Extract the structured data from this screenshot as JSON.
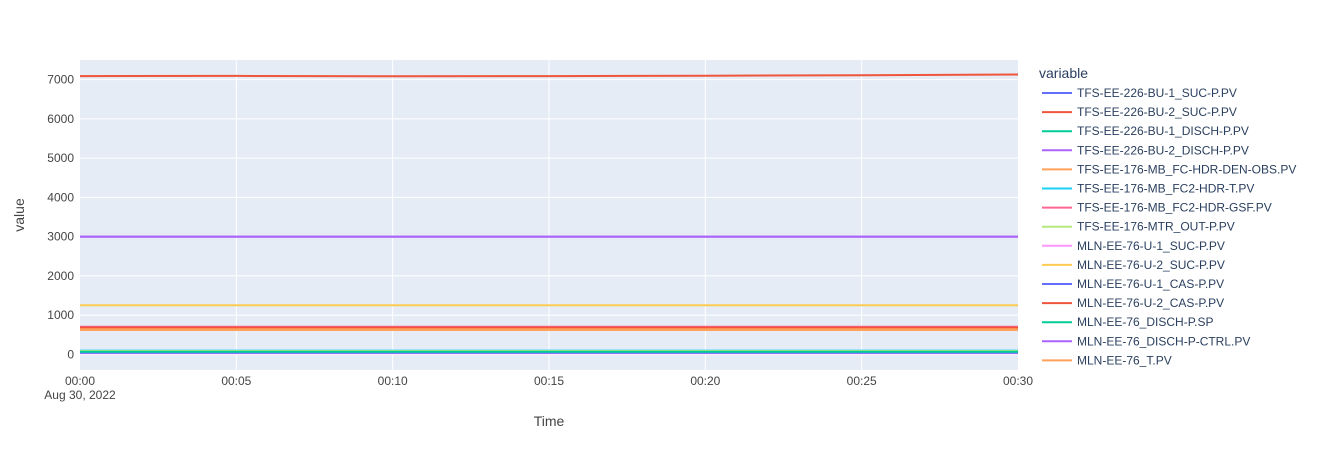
{
  "chart_data": {
    "type": "line",
    "title": "",
    "xlabel": "Time",
    "ylabel": "value",
    "x_start": "2022-08-30 00:00",
    "x_end": "2022-08-30 00:30",
    "x_ticks": [
      "00:00",
      "00:05",
      "00:10",
      "00:15",
      "00:20",
      "00:25",
      "00:30"
    ],
    "x_date_label": "Aug 30, 2022",
    "y_ticks": [
      0,
      1000,
      2000,
      3000,
      4000,
      5000,
      6000,
      7000
    ],
    "ylim": [
      -400,
      7500
    ],
    "grid": true,
    "legend": {
      "title": "variable",
      "placement": "right"
    },
    "series": [
      {
        "name": "TFS-EE-226-BU-1_SUC-P.PV",
        "color": "#636efa",
        "x": [
          "00:00",
          "00:30"
        ],
        "values": [
          35,
          35
        ]
      },
      {
        "name": "TFS-EE-226-BU-2_SUC-P.PV",
        "color": "#EF553B",
        "x": [
          "00:00",
          "00:05",
          "00:10",
          "00:15",
          "00:20",
          "00:25",
          "00:30"
        ],
        "values": [
          7090,
          7095,
          7085,
          7090,
          7100,
          7110,
          7130
        ]
      },
      {
        "name": "TFS-EE-226-BU-1_DISCH-P.PV",
        "color": "#00cc96",
        "x": [
          "00:00",
          "00:30"
        ],
        "values": [
          60,
          60
        ]
      },
      {
        "name": "TFS-EE-226-BU-2_DISCH-P.PV",
        "color": "#ab63fa",
        "x": [
          "00:00",
          "00:30"
        ],
        "values": [
          3000,
          3000
        ]
      },
      {
        "name": "TFS-EE-176-MB_FC-HDR-DEN-OBS.PV",
        "color": "#FFA15A",
        "x": [
          "00:00",
          "00:30"
        ],
        "values": [
          620,
          620
        ]
      },
      {
        "name": "TFS-EE-176-MB_FC2-HDR-T.PV",
        "color": "#19d3f3",
        "x": [
          "00:00",
          "00:30"
        ],
        "values": [
          95,
          95
        ]
      },
      {
        "name": "TFS-EE-176-MB_FC2-HDR-GSF.PV",
        "color": "#FF6692",
        "x": [
          "00:00",
          "00:30"
        ],
        "values": [
          700,
          700
        ]
      },
      {
        "name": "TFS-EE-176-MTR_OUT-P.PV",
        "color": "#B6E880",
        "x": [
          "00:00",
          "00:30"
        ],
        "values": [
          85,
          85
        ]
      },
      {
        "name": "MLN-EE-76-U-1_SUC-P.PV",
        "color": "#FF97FF",
        "x": [
          "00:00",
          "00:30"
        ],
        "values": [
          25,
          25
        ]
      },
      {
        "name": "MLN-EE-76-U-2_SUC-P.PV",
        "color": "#FECB52",
        "x": [
          "00:00",
          "00:30"
        ],
        "values": [
          1250,
          1250
        ]
      },
      {
        "name": "MLN-EE-76-U-1_CAS-P.PV",
        "color": "#636efa",
        "x": [
          "00:00",
          "00:30"
        ],
        "values": [
          40,
          40
        ]
      },
      {
        "name": "MLN-EE-76-U-2_CAS-P.PV",
        "color": "#EF553B",
        "x": [
          "00:00",
          "00:30"
        ],
        "values": [
          680,
          680
        ]
      },
      {
        "name": "MLN-EE-76_DISCH-P.SP",
        "color": "#00cc96",
        "x": [
          "00:00",
          "00:30"
        ],
        "values": [
          65,
          65
        ]
      },
      {
        "name": "MLN-EE-76_DISCH-P-CTRL.PV",
        "color": "#ab63fa",
        "x": [
          "00:00",
          "00:30"
        ],
        "values": [
          2995,
          2995
        ]
      },
      {
        "name": "MLN-EE-76_T.PV",
        "color": "#FFA15A",
        "x": [
          "00:00",
          "00:30"
        ],
        "values": [
          640,
          640
        ]
      }
    ]
  }
}
